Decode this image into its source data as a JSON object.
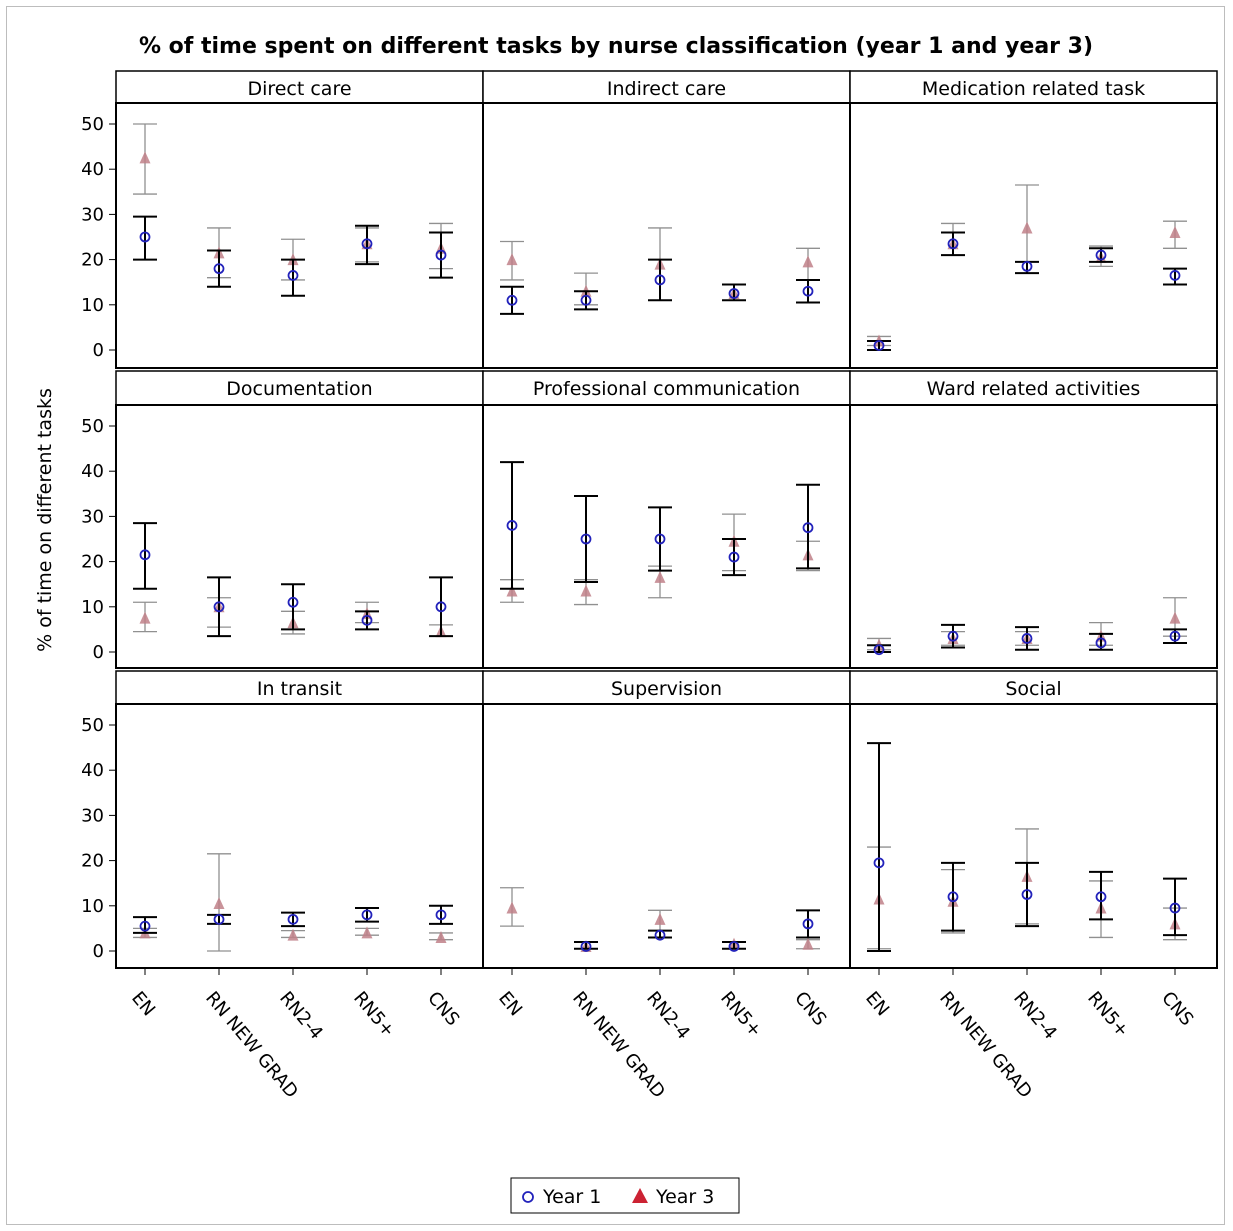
{
  "chart_data": {
    "type": "scatter",
    "title": "% of time spent on different tasks by nurse classification (year 1 and year 3)",
    "ylabel": "% of time on different tasks",
    "xlabel": "",
    "ylim": [
      -3,
      54
    ],
    "yticks": [
      0,
      10,
      20,
      30,
      40,
      50
    ],
    "categories": [
      "EN",
      "RN NEW GRAD",
      "RN2-4",
      "RN5+",
      "CNS"
    ],
    "legend": {
      "position": "bottom-center",
      "items": [
        "Year 1",
        "Year 3"
      ]
    },
    "colors": {
      "year1": "#2222bb",
      "year3": "#c08088",
      "year1_bar": "#000000",
      "year3_bar": "#909090",
      "frame": "#000000"
    },
    "panels": [
      {
        "name": "Direct care",
        "series": [
          {
            "name": "Year 1",
            "values": [
              25,
              18,
              16.5,
              23.5,
              21
            ],
            "lower": [
              20,
              14,
              12,
              19,
              16
            ],
            "upper": [
              29.5,
              22,
              20,
              27.5,
              26
            ]
          },
          {
            "name": "Year 3",
            "values": [
              42.5,
              21.5,
              20,
              23.5,
              22.5
            ],
            "lower": [
              34.5,
              16,
              15.5,
              19.5,
              18
            ],
            "upper": [
              50,
              27,
              24.5,
              27,
              28
            ]
          }
        ]
      },
      {
        "name": "Indirect care",
        "series": [
          {
            "name": "Year 1",
            "values": [
              11,
              11,
              15.5,
              12.5,
              13
            ],
            "lower": [
              8,
              9,
              11,
              11,
              10.5
            ],
            "upper": [
              14,
              13,
              20,
              14.5,
              15.5
            ]
          },
          {
            "name": "Year 3",
            "values": [
              20,
              13,
              19,
              12.5,
              19.5
            ],
            "lower": [
              15.5,
              10,
              11,
              11,
              15.5
            ],
            "upper": [
              24,
              17,
              27,
              14.5,
              22.5
            ]
          }
        ]
      },
      {
        "name": "Medication related task",
        "series": [
          {
            "name": "Year 1",
            "values": [
              1,
              23.5,
              18.5,
              21,
              16.5
            ],
            "lower": [
              0,
              21,
              17,
              19.5,
              14.5
            ],
            "upper": [
              2,
              26,
              19.5,
              22.5,
              18
            ]
          },
          {
            "name": "Year 3",
            "values": [
              2,
              23.5,
              27,
              20.5,
              26
            ],
            "lower": [
              1,
              21,
              17,
              18.5,
              22.5
            ],
            "upper": [
              3,
              28,
              36.5,
              23,
              28.5
            ]
          }
        ]
      },
      {
        "name": "Documentation",
        "series": [
          {
            "name": "Year 1",
            "values": [
              21.5,
              10,
              11,
              7,
              10
            ],
            "lower": [
              14,
              3.5,
              5,
              5,
              3.5
            ],
            "upper": [
              28.5,
              16.5,
              15,
              9,
              16.5
            ]
          },
          {
            "name": "Year 3",
            "values": [
              7.5,
              10,
              6.5,
              8.5,
              4.5
            ],
            "lower": [
              4.5,
              5.5,
              4,
              6.5,
              3.5
            ],
            "upper": [
              11,
              12,
              9,
              11,
              6
            ]
          }
        ]
      },
      {
        "name": "Professional communication",
        "series": [
          {
            "name": "Year 1",
            "values": [
              28,
              25,
              25,
              21,
              27.5
            ],
            "lower": [
              14,
              15.5,
              18,
              17,
              18.5
            ],
            "upper": [
              42,
              34.5,
              32,
              25,
              37
            ]
          },
          {
            "name": "Year 3",
            "values": [
              13.5,
              13.5,
              16.5,
              24.5,
              21.5
            ],
            "lower": [
              11,
              10.5,
              12,
              18,
              18
            ],
            "upper": [
              16,
              16,
              19,
              30.5,
              24.5
            ]
          }
        ]
      },
      {
        "name": "Ward related activities",
        "series": [
          {
            "name": "Year 1",
            "values": [
              0.5,
              3.5,
              3,
              2,
              3.5
            ],
            "lower": [
              0,
              1,
              0.5,
              0.5,
              2
            ],
            "upper": [
              1.5,
              6,
              5.5,
              4,
              5
            ]
          },
          {
            "name": "Year 3",
            "values": [
              1.5,
              3,
              3,
              3.5,
              7.5
            ],
            "lower": [
              0.5,
              1.5,
              1.5,
              1.5,
              3.5
            ],
            "upper": [
              3,
              4.5,
              4.5,
              6.5,
              12
            ]
          }
        ]
      },
      {
        "name": "In transit",
        "series": [
          {
            "name": "Year 1",
            "values": [
              5.5,
              7,
              7,
              8,
              8
            ],
            "lower": [
              4,
              6,
              5.5,
              6.5,
              6
            ],
            "upper": [
              7.5,
              8,
              8.5,
              9.5,
              10
            ]
          },
          {
            "name": "Year 3",
            "values": [
              4,
              10.5,
              3.5,
              4,
              3
            ],
            "lower": [
              3,
              0,
              3,
              3.5,
              2.5
            ],
            "upper": [
              5,
              21.5,
              4.5,
              5,
              4
            ]
          }
        ]
      },
      {
        "name": "Supervision",
        "series": [
          {
            "name": "Year 1",
            "values": [
              null,
              1,
              3.5,
              1,
              6
            ],
            "lower": [
              null,
              0.5,
              3,
              0.5,
              3
            ],
            "upper": [
              null,
              2,
              4.5,
              2,
              9
            ]
          },
          {
            "name": "Year 3",
            "values": [
              9.5,
              1,
              7,
              1.5,
              1.5
            ],
            "lower": [
              5.5,
              0.5,
              4.5,
              0.5,
              0.5
            ],
            "upper": [
              14,
              2,
              9,
              2,
              2.5
            ]
          }
        ]
      },
      {
        "name": "Social",
        "series": [
          {
            "name": "Year 1",
            "values": [
              19.5,
              12,
              12.5,
              12,
              9.5
            ],
            "lower": [
              0,
              4.5,
              5.5,
              7,
              3.5
            ],
            "upper": [
              46,
              19.5,
              19.5,
              17.5,
              16
            ]
          },
          {
            "name": "Year 3",
            "values": [
              11.5,
              11,
              16.5,
              9.5,
              6
            ],
            "lower": [
              0.5,
              4,
              6,
              3,
              2.5
            ],
            "upper": [
              23,
              18,
              27,
              15.5,
              9.5
            ]
          }
        ]
      }
    ]
  }
}
